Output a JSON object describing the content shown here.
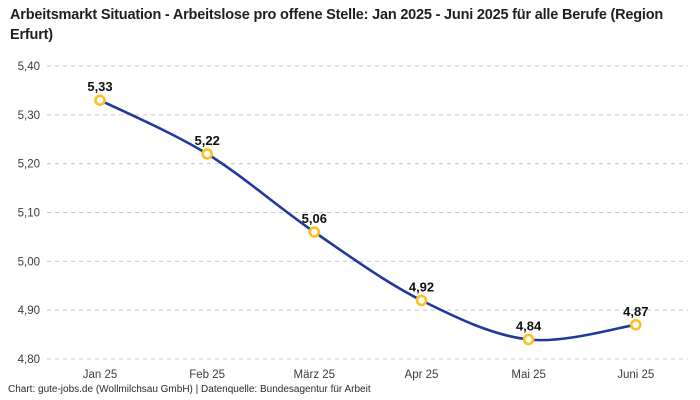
{
  "header": {
    "title": "Arbeitsmarkt Situation - Arbeitslose pro offene Stelle: Jan 2025 - Juni 2025 für alle Berufe (Region Erfurt)"
  },
  "chart_data": {
    "type": "line",
    "title": "Arbeitsmarkt Situation - Arbeitslose pro offene Stelle: Jan 2025 - Juni 2025 für alle Berufe (Region Erfurt)",
    "categories": [
      "Jan 25",
      "Feb 25",
      "März 25",
      "Apr 25",
      "Mai 25",
      "Juni 25"
    ],
    "values": [
      5.33,
      5.22,
      5.06,
      4.92,
      4.84,
      4.87
    ],
    "value_labels": [
      "5,33",
      "5,22",
      "5,06",
      "4,92",
      "4,84",
      "4,87"
    ],
    "y_ticks": [
      5.4,
      5.3,
      5.2,
      5.1,
      5.0,
      4.9,
      4.8
    ],
    "y_tick_labels": [
      "5,40",
      "5,30",
      "5,20",
      "5,10",
      "5,00",
      "4,90",
      "4,80"
    ],
    "ylim": [
      4.8,
      5.4
    ],
    "xlabel": "",
    "ylabel": "",
    "grid": "horizontal-dashed",
    "legend": "none",
    "line_style": "smooth",
    "marker_style": "open-circle",
    "colors": {
      "line": "#1f3a9c",
      "marker_stroke": "#fdc021",
      "marker_fill": "#ffffff",
      "grid": "#c8c8c8",
      "tick_text": "#3c3c3c",
      "point_label_text": "#111111",
      "title_text": "#1f1f1f",
      "background": "#ffffff"
    }
  },
  "footer": {
    "text": "Chart: gute-jobs.de (Wollmilchsau GmbH) | Datenquelle: Bundesagentur für Arbeit"
  }
}
